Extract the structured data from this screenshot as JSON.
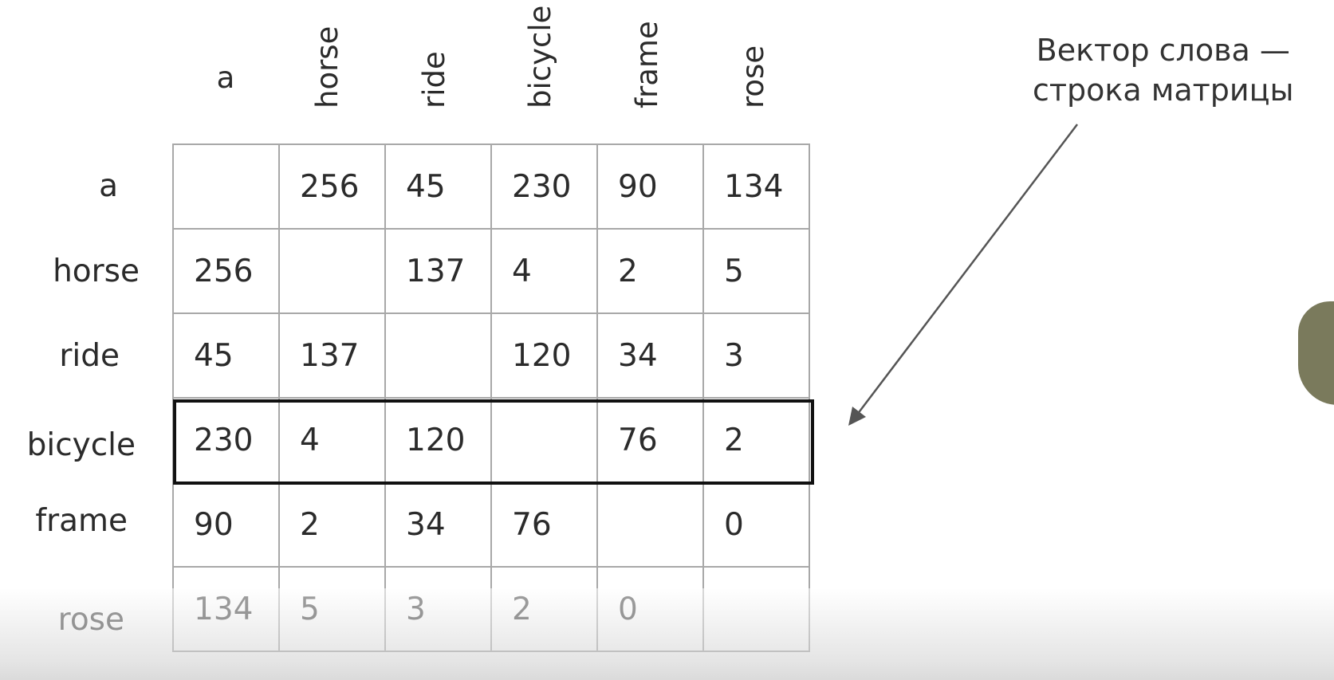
{
  "columns": [
    "a",
    "horse",
    "ride",
    "bicycle",
    "frame",
    "rose"
  ],
  "rows": [
    {
      "label": "a",
      "values": [
        "",
        "256",
        "45",
        "230",
        "90",
        "134"
      ]
    },
    {
      "label": "horse",
      "values": [
        "256",
        "",
        "137",
        "4",
        "2",
        "5"
      ]
    },
    {
      "label": "ride",
      "values": [
        "45",
        "137",
        "",
        "120",
        "34",
        "3"
      ]
    },
    {
      "label": "bicycle",
      "values": [
        "230",
        "4",
        "120",
        "",
        "76",
        "2"
      ]
    },
    {
      "label": "frame",
      "values": [
        "90",
        "2",
        "34",
        "76",
        "",
        "0"
      ]
    },
    {
      "label": "rose",
      "values": [
        "134",
        "5",
        "3",
        "2",
        "0",
        ""
      ]
    }
  ],
  "highlighted_row": "bicycle",
  "callout": {
    "line1": "Вектор слова —",
    "line2": "строка матрицы"
  }
}
